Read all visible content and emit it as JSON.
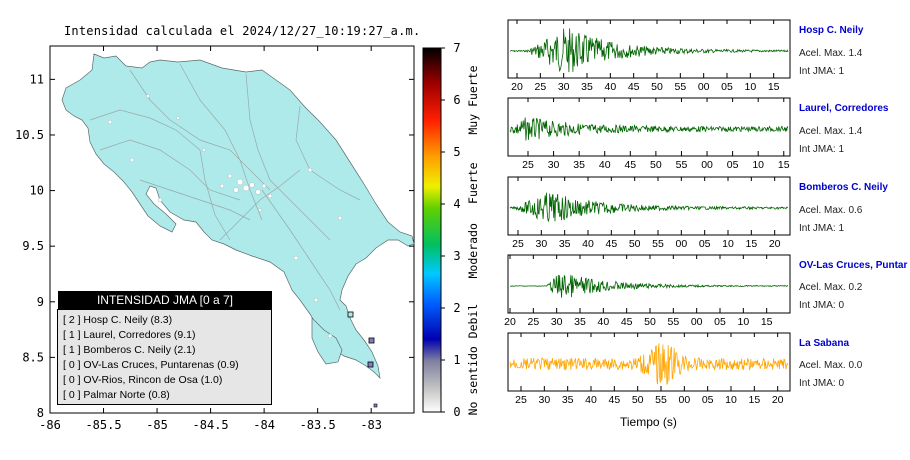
{
  "map": {
    "title": "Intensidad calculada el 2024/12/27_10:19:27_a.m.",
    "x_ticks": [
      "-86",
      "-85.5",
      "-85",
      "-84.5",
      "-84",
      "-83.5",
      "-83"
    ],
    "y_ticks": [
      "11",
      "10.5",
      "10",
      "9.5",
      "9",
      "8.5",
      "8"
    ]
  },
  "colorbar": {
    "ticks": [
      "0",
      "1",
      "2",
      "3",
      "4",
      "5",
      "6",
      "7"
    ],
    "categories": [
      "No sentido",
      "Debil",
      "Moderado",
      "Fuerte",
      "Muy Fuerte"
    ]
  },
  "legend": {
    "header": "INTENSIDAD JMA [0 a 7]",
    "items": [
      "[ 2 ]  Hosp C. Neily (8.3)",
      "[ 1 ]  Laurel, Corredores (9.1)",
      "[ 1 ]  Bomberos C. Neily (2.1)",
      "[ 0 ]  OV-Las Cruces, Puntarenas (0.9)",
      "[ 0 ]  OV-Rios, Rincon de Osa (1.0)",
      "[ 0 ]  Palmar Norte (0.8)"
    ]
  },
  "stations": [
    {
      "name": "Hosp C. Neily",
      "accel": "Acel. Max. 1.4",
      "jma": "Int JMA: 1",
      "color": "#006400",
      "ticks": [
        "20",
        "25",
        "30",
        "35",
        "40",
        "45",
        "50",
        "55",
        "00",
        "05",
        "10",
        "15"
      ]
    },
    {
      "name": "Laurel, Corredores",
      "accel": "Acel. Max. 1.4",
      "jma": "Int JMA: 1",
      "color": "#006400",
      "ticks": [
        "25",
        "30",
        "35",
        "40",
        "45",
        "50",
        "55",
        "00",
        "05",
        "10",
        "15"
      ]
    },
    {
      "name": "Bomberos C. Neily",
      "accel": "Acel. Max. 0.6",
      "jma": "Int JMA: 1",
      "color": "#006400",
      "ticks": [
        "25",
        "30",
        "35",
        "40",
        "45",
        "50",
        "55",
        "00",
        "05",
        "10",
        "15",
        "20"
      ]
    },
    {
      "name": "OV-Las Cruces, Puntar",
      "accel": "Acel. Max. 0.2",
      "jma": "Int JMA: 0",
      "color": "#006400",
      "ticks": [
        "20",
        "25",
        "30",
        "35",
        "40",
        "45",
        "50",
        "55",
        "00",
        "05",
        "10",
        "15"
      ]
    },
    {
      "name": "La Sabana",
      "accel": "Acel. Max. 0.0",
      "jma": "Int JMA: 0",
      "color": "#ffa500",
      "ticks": [
        "25",
        "30",
        "35",
        "40",
        "45",
        "50",
        "55",
        "00",
        "05",
        "10",
        "15",
        "20"
      ]
    }
  ],
  "x_axis_label": "Tiempo (s)",
  "chart_data": [
    {
      "type": "map",
      "title": "Intensidad calculada el 2024/12/27_10:19:27_a.m.",
      "xlim": [
        -86,
        -82.6
      ],
      "ylim": [
        8,
        11.3
      ],
      "x_ticks": [
        -86,
        -85.5,
        -85,
        -84.5,
        -84,
        -83.5,
        -83
      ],
      "y_ticks": [
        8,
        8.5,
        9,
        9.5,
        10,
        10.5,
        11
      ],
      "colorbar_range": [
        0,
        7
      ],
      "colorbar_categories": [
        "No sentido",
        "Debil",
        "Moderado",
        "Fuerte",
        "Muy Fuerte"
      ],
      "legend_placement": "bottom-left",
      "stations_marked": [
        {
          "lon": -83.03,
          "lat": 8.87,
          "intensity": 0
        },
        {
          "lon": -82.98,
          "lat": 8.63,
          "intensity": 1
        },
        {
          "lon": -82.99,
          "lat": 8.43,
          "intensity": 1
        }
      ]
    },
    {
      "type": "line",
      "subtype": "seismogram",
      "xlabel": "Tiempo (s)",
      "series": [
        {
          "name": "Hosp C. Neily",
          "peak_accel": 1.4,
          "jma": 1
        },
        {
          "name": "Laurel, Corredores",
          "peak_accel": 1.4,
          "jma": 1
        },
        {
          "name": "Bomberos C. Neily",
          "peak_accel": 0.6,
          "jma": 1
        },
        {
          "name": "OV-Las Cruces, Puntar",
          "peak_accel": 0.2,
          "jma": 0
        },
        {
          "name": "La Sabana",
          "peak_accel": 0.0,
          "jma": 0
        }
      ]
    }
  ]
}
